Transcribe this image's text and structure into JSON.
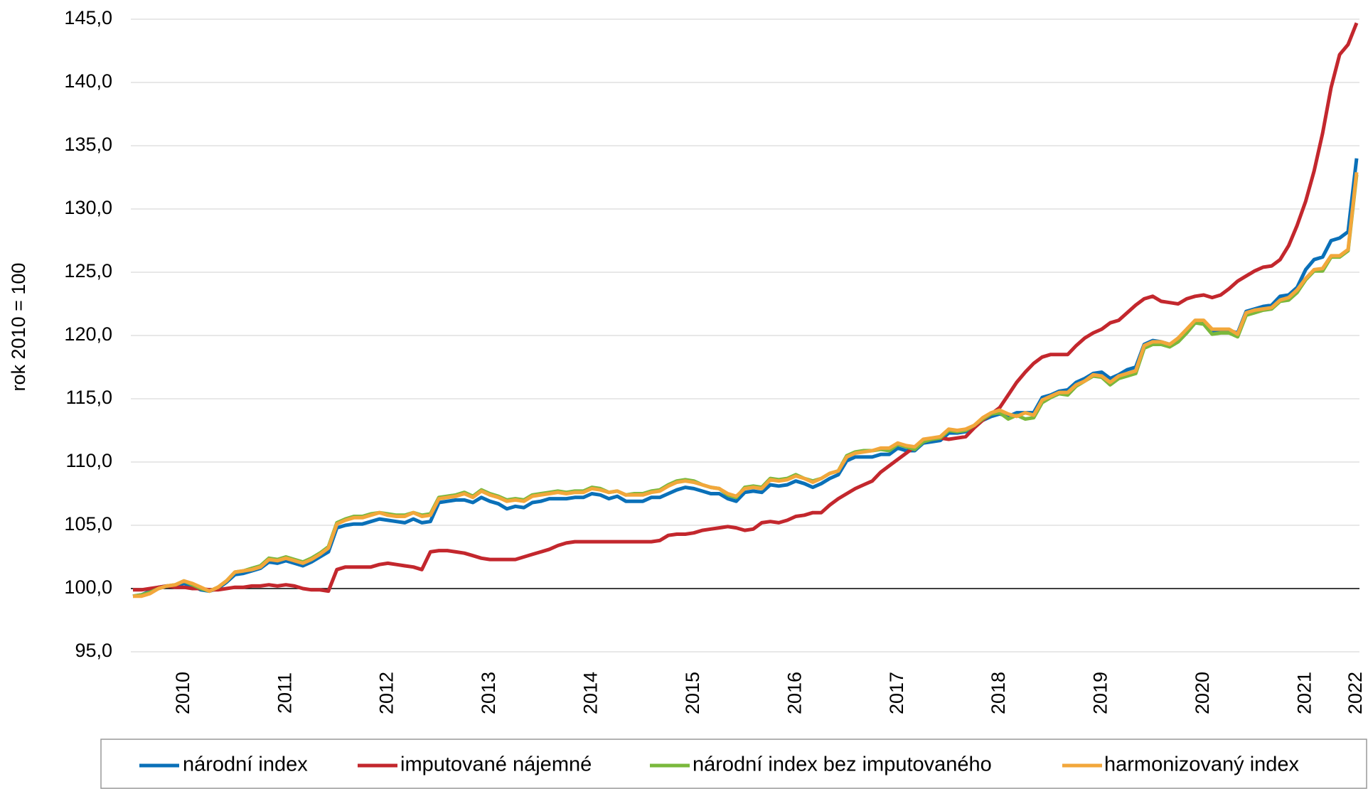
{
  "chart_data": {
    "type": "line",
    "y_label": "rok 2010 = 100",
    "ylim": [
      95,
      145
    ],
    "yticks": [
      {
        "value": 95,
        "label": "95,0"
      },
      {
        "value": 100,
        "label": "100,0"
      },
      {
        "value": 105,
        "label": "105,0"
      },
      {
        "value": 110,
        "label": "110,0"
      },
      {
        "value": 115,
        "label": "115,0"
      },
      {
        "value": 120,
        "label": "120,0"
      },
      {
        "value": 125,
        "label": "125,0"
      },
      {
        "value": 130,
        "label": "130,0"
      },
      {
        "value": 135,
        "label": "135,0"
      },
      {
        "value": 140,
        "label": "140,0"
      },
      {
        "value": 145,
        "label": "145,0"
      }
    ],
    "grid": true,
    "baseline": 100,
    "legend": "bottom",
    "categories": [
      null,
      null,
      null,
      null,
      null,
      null,
      "2010",
      null,
      null,
      null,
      null,
      null,
      null,
      null,
      null,
      null,
      null,
      null,
      "2011",
      null,
      null,
      null,
      null,
      null,
      null,
      null,
      null,
      null,
      null,
      null,
      "2012",
      null,
      null,
      null,
      null,
      null,
      null,
      null,
      null,
      null,
      null,
      null,
      "2013",
      null,
      null,
      null,
      null,
      null,
      null,
      null,
      null,
      null,
      null,
      null,
      "2014",
      null,
      null,
      null,
      null,
      null,
      null,
      null,
      null,
      null,
      null,
      null,
      "2015",
      null,
      null,
      null,
      null,
      null,
      null,
      null,
      null,
      null,
      null,
      null,
      "2016",
      null,
      null,
      null,
      null,
      null,
      null,
      null,
      null,
      null,
      null,
      null,
      "2017",
      null,
      null,
      null,
      null,
      null,
      null,
      null,
      null,
      null,
      null,
      null,
      "2018",
      null,
      null,
      null,
      null,
      null,
      null,
      null,
      null,
      null,
      null,
      null,
      "2019",
      null,
      null,
      null,
      null,
      null,
      null,
      null,
      null,
      null,
      null,
      null,
      "2020",
      null,
      null,
      null,
      null,
      null,
      null,
      null,
      null,
      null,
      null,
      null,
      "2021",
      null,
      null,
      null,
      null,
      null,
      "2022"
    ],
    "series": [
      {
        "name": "národní index",
        "color": "#0a70b8",
        "values": [
          99.4,
          99.5,
          99.8,
          100.1,
          100.2,
          100.2,
          100.4,
          100.2,
          99.9,
          99.8,
          100.0,
          100.5,
          101.1,
          101.2,
          101.4,
          101.6,
          102.1,
          102.0,
          102.2,
          102.0,
          101.8,
          102.1,
          102.5,
          102.9,
          104.8,
          105.0,
          105.1,
          105.1,
          105.3,
          105.5,
          105.4,
          105.3,
          105.2,
          105.5,
          105.2,
          105.3,
          106.8,
          106.9,
          107.0,
          107.0,
          106.8,
          107.2,
          106.9,
          106.7,
          106.3,
          106.5,
          106.4,
          106.8,
          106.9,
          107.1,
          107.1,
          107.1,
          107.2,
          107.2,
          107.5,
          107.4,
          107.1,
          107.3,
          106.9,
          106.9,
          106.9,
          107.2,
          107.2,
          107.5,
          107.8,
          108.0,
          107.9,
          107.7,
          107.5,
          107.5,
          107.1,
          106.9,
          107.6,
          107.7,
          107.6,
          108.2,
          108.1,
          108.2,
          108.5,
          108.3,
          108.0,
          108.3,
          108.7,
          109.0,
          110.1,
          110.4,
          110.4,
          110.4,
          110.6,
          110.6,
          111.1,
          110.9,
          110.9,
          111.5,
          111.6,
          111.7,
          112.3,
          112.3,
          112.4,
          112.8,
          113.3,
          113.6,
          113.8,
          113.6,
          113.9,
          113.9,
          113.9,
          115.1,
          115.3,
          115.6,
          115.7,
          116.3,
          116.6,
          117.0,
          117.1,
          116.6,
          116.9,
          117.3,
          117.5,
          119.3,
          119.6,
          119.5,
          119.3,
          119.7,
          120.3,
          121.0,
          121.0,
          120.3,
          120.4,
          120.4,
          120.2,
          121.9,
          122.1,
          122.3,
          122.4,
          123.1,
          123.2,
          123.8,
          125.2,
          126.0,
          126.2,
          127.5,
          127.7,
          128.2,
          134.0
        ]
      },
      {
        "name": "imputované nájemné",
        "color": "#c3272d",
        "values": [
          99.9,
          99.9,
          100.0,
          100.1,
          100.2,
          100.1,
          100.1,
          100.0,
          100.0,
          99.9,
          99.9,
          100.0,
          100.1,
          100.1,
          100.2,
          100.2,
          100.3,
          100.2,
          100.3,
          100.2,
          100.0,
          99.9,
          99.9,
          99.8,
          101.5,
          101.7,
          101.7,
          101.7,
          101.7,
          101.9,
          102.0,
          101.9,
          101.8,
          101.7,
          101.5,
          102.9,
          103.0,
          103.0,
          102.9,
          102.8,
          102.6,
          102.4,
          102.3,
          102.3,
          102.3,
          102.3,
          102.5,
          102.7,
          102.9,
          103.1,
          103.4,
          103.6,
          103.7,
          103.7,
          103.7,
          103.7,
          103.7,
          103.7,
          103.7,
          103.7,
          103.7,
          103.7,
          103.8,
          104.2,
          104.3,
          104.3,
          104.4,
          104.6,
          104.7,
          104.8,
          104.9,
          104.8,
          104.6,
          104.7,
          105.2,
          105.3,
          105.2,
          105.4,
          105.7,
          105.8,
          106.0,
          106.0,
          106.6,
          107.1,
          107.5,
          107.9,
          108.2,
          108.5,
          109.2,
          109.7,
          110.2,
          110.7,
          111.2,
          111.7,
          111.8,
          111.9,
          111.8,
          111.9,
          112.0,
          112.7,
          113.3,
          113.8,
          114.3,
          115.3,
          116.3,
          117.1,
          117.8,
          118.3,
          118.5,
          118.5,
          118.5,
          119.2,
          119.8,
          120.2,
          120.5,
          121.0,
          121.2,
          121.8,
          122.4,
          122.9,
          123.1,
          122.7,
          122.6,
          122.5,
          122.9,
          123.1,
          123.2,
          123.0,
          123.2,
          123.7,
          124.3,
          124.7,
          125.1,
          125.4,
          125.5,
          126.0,
          127.1,
          128.7,
          130.6,
          133.0,
          136.0,
          139.6,
          142.2,
          143.0,
          144.7
        ]
      },
      {
        "name": "národní index bez imputovaného",
        "color": "#7ab83c",
        "values": [
          99.4,
          99.5,
          99.7,
          100.0,
          100.2,
          100.3,
          100.6,
          100.3,
          100.0,
          99.8,
          100.1,
          100.6,
          101.3,
          101.4,
          101.6,
          101.8,
          102.4,
          102.3,
          102.5,
          102.3,
          102.1,
          102.4,
          102.8,
          103.3,
          105.2,
          105.5,
          105.7,
          105.7,
          105.9,
          106.0,
          105.9,
          105.8,
          105.8,
          106.0,
          105.8,
          105.9,
          107.2,
          107.3,
          107.4,
          107.6,
          107.3,
          107.8,
          107.5,
          107.3,
          107.0,
          107.1,
          107.0,
          107.4,
          107.5,
          107.6,
          107.7,
          107.6,
          107.7,
          107.7,
          108.0,
          107.9,
          107.6,
          107.7,
          107.4,
          107.5,
          107.5,
          107.7,
          107.8,
          108.2,
          108.5,
          108.6,
          108.5,
          108.2,
          108.0,
          107.9,
          107.4,
          107.2,
          108.0,
          108.1,
          108.0,
          108.7,
          108.6,
          108.7,
          109.0,
          108.7,
          108.5,
          108.7,
          109.1,
          109.3,
          110.5,
          110.8,
          110.9,
          110.9,
          111.0,
          110.9,
          111.4,
          111.2,
          111.0,
          111.6,
          111.8,
          111.9,
          112.5,
          112.4,
          112.5,
          112.9,
          113.4,
          113.8,
          113.9,
          113.4,
          113.7,
          113.4,
          113.5,
          114.7,
          115.1,
          115.4,
          115.3,
          116.0,
          116.4,
          116.8,
          116.7,
          116.1,
          116.6,
          116.8,
          117.0,
          119.0,
          119.3,
          119.3,
          119.1,
          119.5,
          120.2,
          121.0,
          120.9,
          120.1,
          120.2,
          120.2,
          119.9,
          121.6,
          121.8,
          122.0,
          122.1,
          122.7,
          122.8,
          123.4,
          124.4,
          125.1,
          125.1,
          126.2,
          126.2,
          126.7,
          132.7
        ]
      },
      {
        "name": "harmonizovaný index",
        "color": "#f2a73b",
        "values": [
          99.4,
          99.4,
          99.6,
          100.0,
          100.2,
          100.3,
          100.6,
          100.4,
          100.1,
          99.8,
          100.1,
          100.6,
          101.3,
          101.4,
          101.5,
          101.7,
          102.3,
          102.2,
          102.4,
          102.2,
          102.0,
          102.3,
          102.7,
          103.2,
          105.1,
          105.4,
          105.6,
          105.6,
          105.8,
          106.0,
          105.8,
          105.7,
          105.7,
          106.0,
          105.7,
          105.8,
          107.1,
          107.2,
          107.3,
          107.5,
          107.2,
          107.7,
          107.4,
          107.2,
          106.9,
          107.0,
          106.9,
          107.3,
          107.4,
          107.5,
          107.6,
          107.5,
          107.6,
          107.6,
          107.9,
          107.8,
          107.6,
          107.7,
          107.4,
          107.4,
          107.4,
          107.6,
          107.7,
          108.1,
          108.4,
          108.5,
          108.4,
          108.2,
          108.0,
          107.9,
          107.5,
          107.3,
          107.9,
          108.0,
          107.9,
          108.6,
          108.5,
          108.6,
          108.9,
          108.7,
          108.4,
          108.7,
          109.1,
          109.3,
          110.4,
          110.7,
          110.8,
          110.9,
          111.1,
          111.1,
          111.5,
          111.3,
          111.2,
          111.8,
          111.9,
          112.0,
          112.6,
          112.5,
          112.6,
          112.9,
          113.5,
          113.9,
          114.1,
          113.8,
          113.6,
          113.9,
          113.7,
          114.9,
          115.2,
          115.5,
          115.5,
          116.1,
          116.4,
          116.9,
          116.8,
          116.3,
          116.8,
          117.0,
          117.2,
          119.2,
          119.5,
          119.5,
          119.3,
          119.8,
          120.5,
          121.2,
          121.2,
          120.5,
          120.5,
          120.5,
          120.1,
          121.8,
          122.0,
          122.1,
          122.2,
          122.8,
          123.0,
          123.6,
          124.5,
          125.2,
          125.3,
          126.3,
          126.3,
          126.8,
          132.9
        ]
      }
    ]
  }
}
